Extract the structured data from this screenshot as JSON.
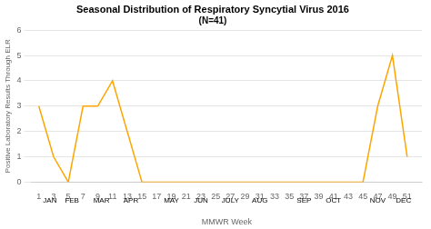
{
  "chart_data": {
    "type": "line",
    "title": "Seasonal Distribution of Respiratory Syncytial Virus 2016",
    "subtitle": "(N=41)",
    "x_label": "MMWR Week",
    "y_label": "Positive Laboratory Results Through ELR",
    "x": [
      1,
      3,
      5,
      7,
      9,
      11,
      13,
      15,
      17,
      19,
      21,
      23,
      25,
      27,
      29,
      31,
      33,
      35,
      37,
      39,
      41,
      43,
      45,
      47,
      49,
      51
    ],
    "values": [
      3,
      1,
      0,
      3,
      3,
      4,
      2,
      0,
      0,
      0,
      0,
      0,
      0,
      0,
      0,
      0,
      0,
      0,
      0,
      0,
      0,
      0,
      0,
      3,
      5,
      1
    ],
    "color": "#FFA500",
    "xlim": [
      0,
      53
    ],
    "xticks": [
      1,
      3,
      5,
      7,
      9,
      11,
      13,
      15,
      17,
      19,
      21,
      23,
      25,
      27,
      29,
      31,
      33,
      35,
      37,
      39,
      41,
      43,
      45,
      47,
      49,
      51
    ],
    "ylim": [
      0,
      6
    ],
    "yticks": [
      0,
      1,
      2,
      3,
      4,
      5,
      6
    ],
    "grid": true,
    "annotations": [
      {
        "text": "JAN",
        "x": 2.5
      },
      {
        "text": "FEB",
        "x": 5.5
      },
      {
        "text": "MAR",
        "x": 9.5
      },
      {
        "text": "APR",
        "x": 13.5
      },
      {
        "text": "MAY",
        "x": 19
      },
      {
        "text": "JUN",
        "x": 23
      },
      {
        "text": "JULY",
        "x": 27
      },
      {
        "text": "AUG",
        "x": 31
      },
      {
        "text": "SEP",
        "x": 37
      },
      {
        "text": "OCT",
        "x": 41
      },
      {
        "text": "NOV",
        "x": 47
      },
      {
        "text": "DEC",
        "x": 50.5
      }
    ]
  }
}
